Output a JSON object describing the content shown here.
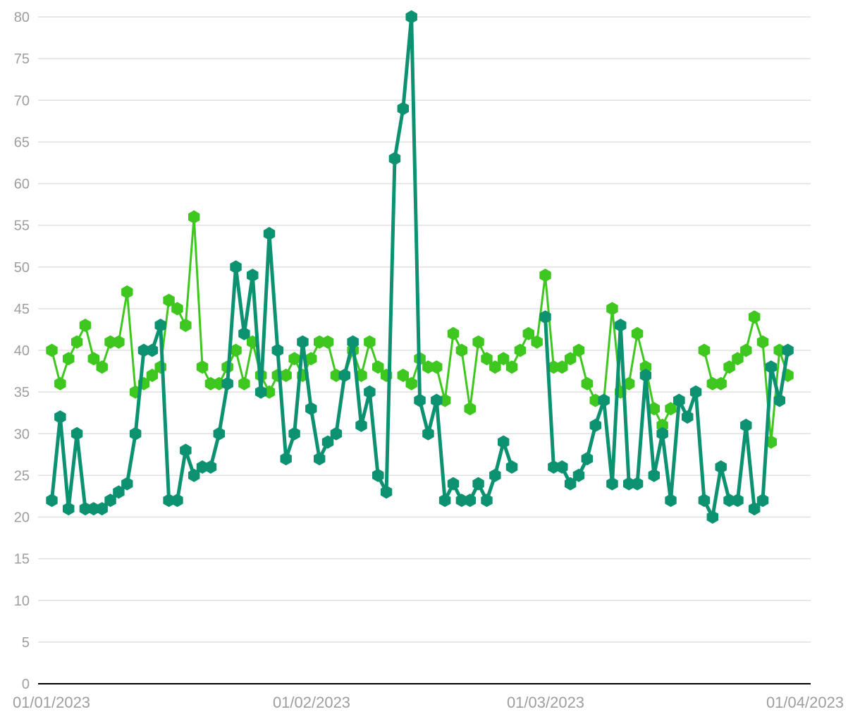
{
  "chart_data": {
    "type": "line",
    "title": "",
    "xlabel": "",
    "ylabel": "",
    "ylim": [
      0,
      80
    ],
    "y_ticks": [
      "0",
      "5",
      "10",
      "15",
      "20",
      "25",
      "30",
      "35",
      "40",
      "45",
      "50",
      "55",
      "60",
      "65",
      "70",
      "75",
      "80"
    ],
    "x_ticks": [
      {
        "label": "01/01/2023",
        "day": 0
      },
      {
        "label": "01/02/2023",
        "day": 31
      },
      {
        "label": "01/03/2023",
        "day": 59
      },
      {
        "label": "01/04/2023",
        "day": 90
      }
    ],
    "x_start": "01/01/2023",
    "series": [
      {
        "name": "Series 1",
        "color": "#3ec71e",
        "values": [
          40,
          36,
          39,
          41,
          43,
          39,
          38,
          41,
          41,
          47,
          35,
          36,
          37,
          38,
          46,
          45,
          43,
          56,
          38,
          36,
          36,
          38,
          40,
          36,
          41,
          37,
          35,
          37,
          37,
          39,
          37,
          39,
          41,
          41,
          37,
          37,
          40,
          37,
          41,
          38,
          37,
          null,
          37,
          36,
          39,
          38,
          38,
          34,
          42,
          40,
          33,
          41,
          39,
          38,
          39,
          38,
          40,
          42,
          41,
          49,
          38,
          38,
          39,
          40,
          36,
          34,
          34,
          45,
          35,
          36,
          42,
          38,
          33,
          31,
          33,
          34,
          null,
          null,
          40,
          36,
          36,
          38,
          39,
          40,
          44,
          41,
          29,
          40,
          37
        ]
      },
      {
        "name": "Series 2",
        "color": "#0d9271",
        "values": [
          22,
          32,
          21,
          30,
          21,
          21,
          21,
          22,
          23,
          24,
          30,
          40,
          40,
          43,
          22,
          22,
          28,
          25,
          26,
          26,
          30,
          36,
          50,
          42,
          49,
          35,
          54,
          40,
          27,
          30,
          41,
          33,
          27,
          29,
          30,
          37,
          41,
          31,
          35,
          25,
          23,
          63,
          69,
          80,
          34,
          30,
          34,
          22,
          24,
          22,
          22,
          24,
          22,
          25,
          29,
          26,
          null,
          null,
          null,
          44,
          26,
          26,
          24,
          25,
          27,
          31,
          34,
          24,
          43,
          24,
          24,
          37,
          25,
          30,
          22,
          34,
          32,
          35,
          22,
          20,
          26,
          22,
          22,
          31,
          21,
          22,
          38,
          34,
          40
        ]
      }
    ]
  }
}
